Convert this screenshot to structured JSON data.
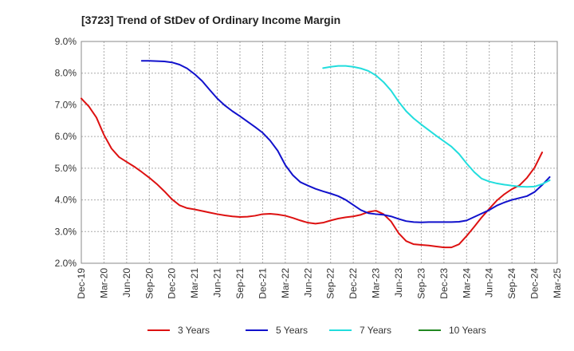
{
  "chart_data": {
    "type": "line",
    "title": "[3723]  Trend of StDev of Ordinary Income Margin",
    "xlabel": "",
    "ylabel": "",
    "ylim": [
      2.0,
      9.0
    ],
    "y_ticks": [
      "2.0%",
      "3.0%",
      "4.0%",
      "5.0%",
      "6.0%",
      "7.0%",
      "8.0%",
      "9.0%"
    ],
    "x_ticks": [
      "Dec-19",
      "Mar-20",
      "Jun-20",
      "Sep-20",
      "Dec-20",
      "Mar-21",
      "Jun-21",
      "Sep-21",
      "Dec-21",
      "Mar-22",
      "Jun-22",
      "Sep-22",
      "Dec-22",
      "Mar-23",
      "Jun-23",
      "Sep-23",
      "Dec-23",
      "Mar-24",
      "Jun-24",
      "Sep-24",
      "Dec-24",
      "Mar-25"
    ],
    "grid": true,
    "legend_position": "bottom",
    "series": [
      {
        "name": "3 Years",
        "color": "#dd1111",
        "points": [
          [
            "Dec-19",
            7.2
          ],
          [
            "Jan-20",
            6.95
          ],
          [
            "Feb-20",
            6.6
          ],
          [
            "Mar-20",
            6.05
          ],
          [
            "Apr-20",
            5.62
          ],
          [
            "May-20",
            5.35
          ],
          [
            "Jun-20",
            5.2
          ],
          [
            "Jul-20",
            5.05
          ],
          [
            "Aug-20",
            4.88
          ],
          [
            "Sep-20",
            4.7
          ],
          [
            "Oct-20",
            4.5
          ],
          [
            "Nov-20",
            4.27
          ],
          [
            "Dec-20",
            4.02
          ],
          [
            "Jan-21",
            3.83
          ],
          [
            "Feb-21",
            3.74
          ],
          [
            "Mar-21",
            3.7
          ],
          [
            "Apr-21",
            3.65
          ],
          [
            "May-21",
            3.6
          ],
          [
            "Jun-21",
            3.55
          ],
          [
            "Jul-21",
            3.51
          ],
          [
            "Aug-21",
            3.48
          ],
          [
            "Sep-21",
            3.46
          ],
          [
            "Oct-21",
            3.47
          ],
          [
            "Nov-21",
            3.5
          ],
          [
            "Dec-21",
            3.55
          ],
          [
            "Jan-22",
            3.56
          ],
          [
            "Feb-22",
            3.54
          ],
          [
            "Mar-22",
            3.5
          ],
          [
            "Apr-22",
            3.43
          ],
          [
            "May-22",
            3.35
          ],
          [
            "Jun-22",
            3.28
          ],
          [
            "Jul-22",
            3.25
          ],
          [
            "Aug-22",
            3.28
          ],
          [
            "Sep-22",
            3.35
          ],
          [
            "Oct-22",
            3.41
          ],
          [
            "Nov-22",
            3.45
          ],
          [
            "Dec-22",
            3.48
          ],
          [
            "Jan-23",
            3.53
          ],
          [
            "Feb-23",
            3.62
          ],
          [
            "Mar-23",
            3.66
          ],
          [
            "Apr-23",
            3.55
          ],
          [
            "May-23",
            3.32
          ],
          [
            "Jun-23",
            2.95
          ],
          [
            "Jul-23",
            2.7
          ],
          [
            "Aug-23",
            2.6
          ],
          [
            "Sep-23",
            2.58
          ],
          [
            "Oct-23",
            2.56
          ],
          [
            "Nov-23",
            2.53
          ],
          [
            "Dec-23",
            2.5
          ],
          [
            "Jan-24",
            2.5
          ],
          [
            "Feb-24",
            2.6
          ],
          [
            "Mar-24",
            2.86
          ],
          [
            "Apr-24",
            3.15
          ],
          [
            "May-24",
            3.45
          ],
          [
            "Jun-24",
            3.72
          ],
          [
            "Jul-24",
            3.98
          ],
          [
            "Aug-24",
            4.18
          ],
          [
            "Sep-24",
            4.34
          ],
          [
            "Oct-24",
            4.46
          ],
          [
            "Nov-24",
            4.7
          ],
          [
            "Dec-24",
            5.02
          ],
          [
            "Jan-25",
            5.5
          ]
        ]
      },
      {
        "name": "5 Years",
        "color": "#1111cc",
        "points": [
          [
            "Aug-20",
            8.39
          ],
          [
            "Sep-20",
            8.39
          ],
          [
            "Oct-20",
            8.38
          ],
          [
            "Nov-20",
            8.37
          ],
          [
            "Dec-20",
            8.34
          ],
          [
            "Jan-21",
            8.27
          ],
          [
            "Feb-21",
            8.15
          ],
          [
            "Mar-21",
            7.97
          ],
          [
            "Apr-21",
            7.75
          ],
          [
            "May-21",
            7.47
          ],
          [
            "Jun-21",
            7.2
          ],
          [
            "Jul-21",
            6.98
          ],
          [
            "Aug-21",
            6.8
          ],
          [
            "Sep-21",
            6.64
          ],
          [
            "Oct-21",
            6.47
          ],
          [
            "Nov-21",
            6.3
          ],
          [
            "Dec-21",
            6.12
          ],
          [
            "Jan-22",
            5.87
          ],
          [
            "Feb-22",
            5.55
          ],
          [
            "Mar-22",
            5.1
          ],
          [
            "Apr-22",
            4.78
          ],
          [
            "May-22",
            4.56
          ],
          [
            "Jun-22",
            4.45
          ],
          [
            "Jul-22",
            4.35
          ],
          [
            "Aug-22",
            4.27
          ],
          [
            "Sep-22",
            4.2
          ],
          [
            "Oct-22",
            4.12
          ],
          [
            "Nov-22",
            4.0
          ],
          [
            "Dec-22",
            3.84
          ],
          [
            "Jan-23",
            3.68
          ],
          [
            "Feb-23",
            3.58
          ],
          [
            "Mar-23",
            3.55
          ],
          [
            "Apr-23",
            3.53
          ],
          [
            "May-23",
            3.48
          ],
          [
            "Jun-23",
            3.4
          ],
          [
            "Jul-23",
            3.33
          ],
          [
            "Aug-23",
            3.3
          ],
          [
            "Sep-23",
            3.29
          ],
          [
            "Oct-23",
            3.3
          ],
          [
            "Nov-23",
            3.3
          ],
          [
            "Dec-23",
            3.3
          ],
          [
            "Jan-24",
            3.3
          ],
          [
            "Feb-24",
            3.31
          ],
          [
            "Mar-24",
            3.35
          ],
          [
            "Apr-24",
            3.46
          ],
          [
            "May-24",
            3.57
          ],
          [
            "Jun-24",
            3.68
          ],
          [
            "Jul-24",
            3.82
          ],
          [
            "Aug-24",
            3.92
          ],
          [
            "Sep-24",
            4.0
          ],
          [
            "Oct-24",
            4.06
          ],
          [
            "Nov-24",
            4.12
          ],
          [
            "Dec-24",
            4.25
          ],
          [
            "Jan-25",
            4.47
          ],
          [
            "Feb-25",
            4.72
          ]
        ]
      },
      {
        "name": "7 Years",
        "color": "#22dddd",
        "points": [
          [
            "Aug-22",
            8.16
          ],
          [
            "Sep-22",
            8.2
          ],
          [
            "Oct-22",
            8.23
          ],
          [
            "Nov-22",
            8.23
          ],
          [
            "Dec-22",
            8.2
          ],
          [
            "Jan-23",
            8.15
          ],
          [
            "Feb-23",
            8.07
          ],
          [
            "Mar-23",
            7.93
          ],
          [
            "Apr-23",
            7.72
          ],
          [
            "May-23",
            7.45
          ],
          [
            "Jun-23",
            7.1
          ],
          [
            "Jul-23",
            6.8
          ],
          [
            "Aug-23",
            6.57
          ],
          [
            "Sep-23",
            6.38
          ],
          [
            "Oct-23",
            6.2
          ],
          [
            "Nov-23",
            6.02
          ],
          [
            "Dec-23",
            5.85
          ],
          [
            "Jan-24",
            5.68
          ],
          [
            "Feb-24",
            5.45
          ],
          [
            "Mar-24",
            5.15
          ],
          [
            "Apr-24",
            4.88
          ],
          [
            "May-24",
            4.67
          ],
          [
            "Jun-24",
            4.58
          ],
          [
            "Jul-24",
            4.52
          ],
          [
            "Aug-24",
            4.48
          ],
          [
            "Sep-24",
            4.45
          ],
          [
            "Oct-24",
            4.42
          ],
          [
            "Nov-24",
            4.41
          ],
          [
            "Dec-24",
            4.42
          ],
          [
            "Jan-25",
            4.5
          ],
          [
            "Feb-25",
            4.62
          ]
        ]
      },
      {
        "name": "10 Years",
        "color": "#228822",
        "points": []
      }
    ]
  }
}
